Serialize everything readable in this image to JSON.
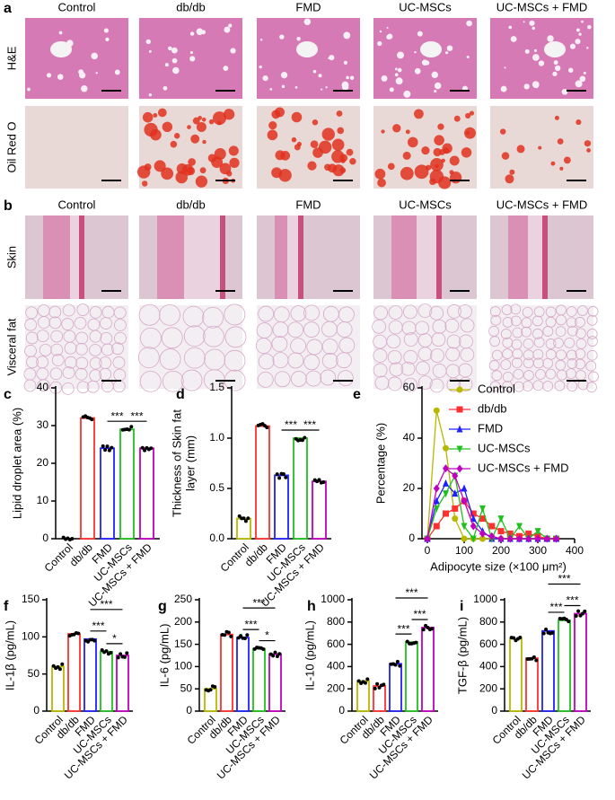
{
  "images": [
    {
      "label": "a",
      "columns": [
        "Control",
        "db/db",
        "FMD",
        "UC-MSCs",
        "UC-MSCs + FMD"
      ],
      "rows": [
        "H&E",
        "Oil Red O"
      ]
    },
    {
      "label": "b",
      "columns": [
        "Control",
        "db/db",
        "FMD",
        "UC-MSCs",
        "UC-MSCs + FMD"
      ],
      "rows": [
        "Skin",
        "Visceral fat"
      ]
    }
  ],
  "chart_data": [
    {
      "type": "bar",
      "panel": "c",
      "ylabel": [
        "Lipid droplet area (%)"
      ],
      "categories": [
        "Control",
        "db/db",
        "FMD",
        "UC-MSCs",
        "UC-MSCs + FMD"
      ],
      "values": [
        0,
        32,
        24,
        29,
        24
      ],
      "colors": [
        "#b8b800",
        "#ff3030",
        "#2020ff",
        "#20c020",
        "#c000c0"
      ],
      "ylim": [
        0,
        40
      ],
      "yticks": [
        0,
        10,
        20,
        30,
        40
      ],
      "comparisons": [
        {
          "groups": [
            "FMD",
            "UC-MSCs"
          ],
          "label": "***"
        },
        {
          "groups": [
            "UC-MSCs",
            "UC-MSCs + FMD"
          ],
          "label": "***"
        }
      ]
    },
    {
      "type": "bar",
      "panel": "d",
      "ylabel": [
        "Thickness of Skin fat",
        "layer (mm)"
      ],
      "categories": [
        "Control",
        "db/db",
        "FMD",
        "UC-MSCs",
        "UC-MSCs + FMD"
      ],
      "values": [
        0.2,
        1.12,
        0.63,
        1.0,
        0.57
      ],
      "colors": [
        "#b8b800",
        "#ff3030",
        "#2020ff",
        "#20c020",
        "#c000c0"
      ],
      "ylim": [
        0,
        1.5
      ],
      "yticks": [
        {
          "value": 0,
          "label": "0.0"
        },
        0.5,
        {
          "value": 1,
          "label": "1.0"
        },
        1.5
      ],
      "comparisons": [
        {
          "groups": [
            "FMD",
            "UC-MSCs"
          ],
          "label": "***"
        },
        {
          "groups": [
            "UC-MSCs",
            "UC-MSCs + FMD"
          ],
          "label": "***"
        }
      ]
    },
    {
      "type": "line",
      "panel": "e",
      "ylabel": [
        "Percentage (%)"
      ],
      "xlabel": "Adipocyte size (×100 μm²)",
      "x": [
        0,
        25,
        50,
        75,
        100,
        125,
        150,
        175,
        200,
        225,
        250,
        275,
        300,
        325,
        350
      ],
      "xlim": [
        0,
        400
      ],
      "xticks": [
        0,
        100,
        200,
        300,
        400
      ],
      "ylim": [
        0,
        60
      ],
      "yticks": [
        0,
        20,
        40,
        60
      ],
      "series": [
        {
          "name": "Control",
          "color": "#b8b800",
          "marker": "circle",
          "values": [
            0,
            51,
            36,
            8,
            0,
            0,
            0,
            0,
            0,
            0,
            0,
            0,
            0,
            0,
            0
          ]
        },
        {
          "name": "db/db",
          "color": "#ff3030",
          "marker": "square",
          "values": [
            0,
            5,
            10,
            12,
            15,
            10,
            8,
            5,
            3,
            2,
            1,
            2,
            1,
            0,
            0
          ]
        },
        {
          "name": "FMD",
          "color": "#2020ff",
          "marker": "triangle",
          "values": [
            0,
            15,
            22,
            18,
            20,
            8,
            3,
            0,
            0,
            0,
            0,
            0,
            0,
            0,
            0
          ]
        },
        {
          "name": "UC-MSCs",
          "color": "#20c020",
          "marker": "triangle-down",
          "values": [
            0,
            12,
            18,
            25,
            5,
            0,
            12,
            0,
            8,
            0,
            5,
            0,
            3,
            0,
            0
          ]
        },
        {
          "name": "UC-MSCs + FMD",
          "color": "#c000c0",
          "marker": "diamond",
          "values": [
            0,
            20,
            28,
            25,
            15,
            5,
            2,
            1,
            0,
            0,
            0,
            0,
            0,
            0,
            0
          ]
        }
      ]
    },
    {
      "type": "bar",
      "panel": "f",
      "ylabel": [
        "IL-1β (pg/mL)"
      ],
      "categories": [
        "Control",
        "db/db",
        "FMD",
        "UC-MSCs",
        "UC-MSCs + FMD"
      ],
      "values": [
        60,
        104,
        97,
        80,
        75
      ],
      "colors": [
        "#b8b800",
        "#ff3030",
        "#2020ff",
        "#20c020",
        "#c000c0"
      ],
      "ylim": [
        0,
        150
      ],
      "yticks": [
        0,
        50,
        100,
        150
      ],
      "comparisons": [
        {
          "groups": [
            "UC-MSCs",
            "UC-MSCs + FMD"
          ],
          "label": "*"
        },
        {
          "groups": [
            "FMD",
            "UC-MSCs"
          ],
          "label": "***"
        },
        {
          "groups": [
            "FMD",
            "UC-MSCs + FMD"
          ],
          "label": "***"
        }
      ]
    },
    {
      "type": "bar",
      "panel": "g",
      "ylabel": [
        "IL-6 (pg/mL)"
      ],
      "categories": [
        "Control",
        "db/db",
        "FMD",
        "UC-MSCs",
        "UC-MSCs + FMD"
      ],
      "values": [
        50,
        172,
        165,
        140,
        128
      ],
      "colors": [
        "#b8b800",
        "#ff3030",
        "#2020ff",
        "#20c020",
        "#c000c0"
      ],
      "ylim": [
        0,
        250
      ],
      "yticks": [
        0,
        50,
        100,
        150,
        200,
        250
      ],
      "comparisons": [
        {
          "groups": [
            "UC-MSCs",
            "UC-MSCs + FMD"
          ],
          "label": "*"
        },
        {
          "groups": [
            "FMD",
            "UC-MSCs"
          ],
          "label": "***"
        },
        {
          "groups": [
            "FMD",
            "UC-MSCs + FMD"
          ],
          "label": "***"
        }
      ]
    },
    {
      "type": "bar",
      "panel": "h",
      "ylabel": [
        "IL-10 (pg/mL)"
      ],
      "categories": [
        "Control",
        "db/db",
        "FMD",
        "UC-MSCs",
        "UC-MSCs + FMD"
      ],
      "values": [
        270,
        225,
        425,
        620,
        750
      ],
      "colors": [
        "#b8b800",
        "#ff3030",
        "#2020ff",
        "#20c020",
        "#c000c0"
      ],
      "ylim": [
        0,
        1000
      ],
      "yticks": [
        0,
        200,
        400,
        600,
        800,
        1000
      ],
      "comparisons": [
        {
          "groups": [
            "FMD",
            "UC-MSCs"
          ],
          "label": "***"
        },
        {
          "groups": [
            "UC-MSCs",
            "UC-MSCs + FMD"
          ],
          "label": "***"
        },
        {
          "groups": [
            "FMD",
            "UC-MSCs + FMD"
          ],
          "label": "***"
        }
      ]
    },
    {
      "type": "bar",
      "panel": "i",
      "ylabel": [
        "TGF-β (pg/mL)"
      ],
      "categories": [
        "Control",
        "db/db",
        "FMD",
        "UC-MSCs",
        "UC-MSCs + FMD"
      ],
      "values": [
        650,
        475,
        720,
        815,
        875
      ],
      "colors": [
        "#b8b800",
        "#ff3030",
        "#2020ff",
        "#20c020",
        "#c000c0"
      ],
      "ylim": [
        0,
        1000
      ],
      "yticks": [
        0,
        200,
        400,
        600,
        800,
        1000
      ],
      "comparisons": [
        {
          "groups": [
            "FMD",
            "UC-MSCs"
          ],
          "label": "***"
        },
        {
          "groups": [
            "UC-MSCs",
            "UC-MSCs + FMD"
          ],
          "label": "***"
        },
        {
          "groups": [
            "FMD",
            "UC-MSCs + FMD"
          ],
          "label": "***"
        }
      ]
    }
  ]
}
